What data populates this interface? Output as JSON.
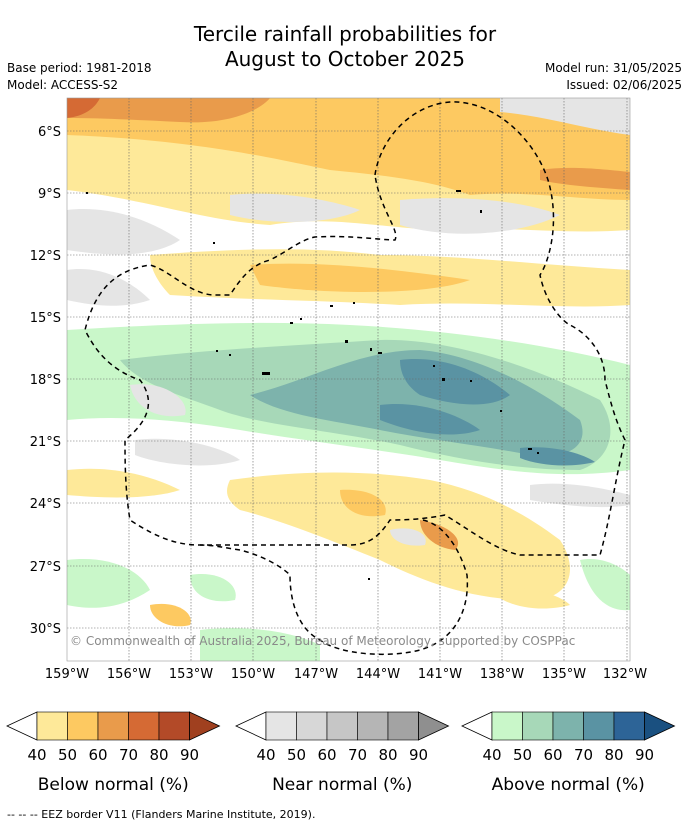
{
  "header": {
    "title_line1": "Tercile rainfall probabilities for",
    "title_line2": "August to October 2025",
    "base_period": "Base period: 1981-2018",
    "model": "Model: ACCESS-S2",
    "model_run": "Model run: 31/05/2025",
    "issued": "Issued: 02/06/2025"
  },
  "map": {
    "lat_labels": [
      "6°S",
      "9°S",
      "12°S",
      "15°S",
      "18°S",
      "21°S",
      "24°S",
      "27°S",
      "30°S"
    ],
    "lon_labels": [
      "159°W",
      "156°W",
      "153°W",
      "150°W",
      "147°W",
      "144°W",
      "141°W",
      "138°W",
      "135°W",
      "132°W"
    ],
    "copyright": "© Commonwealth of Australia 2025, Bureau of Meteorology, supported by COSPPac"
  },
  "colorbars": [
    {
      "title": "Below normal (%)",
      "ticks": [
        "40",
        "50",
        "60",
        "70",
        "80",
        "90"
      ],
      "colors": [
        "#fee999",
        "#fdc961",
        "#e99b4b",
        "#d56a34",
        "#b34a28",
        "#a0401f"
      ]
    },
    {
      "title": "Near normal (%)",
      "ticks": [
        "40",
        "50",
        "60",
        "70",
        "80",
        "90"
      ],
      "colors": [
        "#e5e5e5",
        "#d7d7d7",
        "#c6c6c6",
        "#b5b5b5",
        "#a3a3a3",
        "#8f8f8f"
      ]
    },
    {
      "title": "Above normal (%)",
      "ticks": [
        "40",
        "50",
        "60",
        "70",
        "80",
        "90"
      ],
      "colors": [
        "#c9f7c9",
        "#a7d8b8",
        "#7db3ac",
        "#5a93a3",
        "#2d6497",
        "#1a5080"
      ]
    }
  ],
  "footnote": "-- -- -- EEZ border V11 (Flanders Marine Institute, 2019)."
}
